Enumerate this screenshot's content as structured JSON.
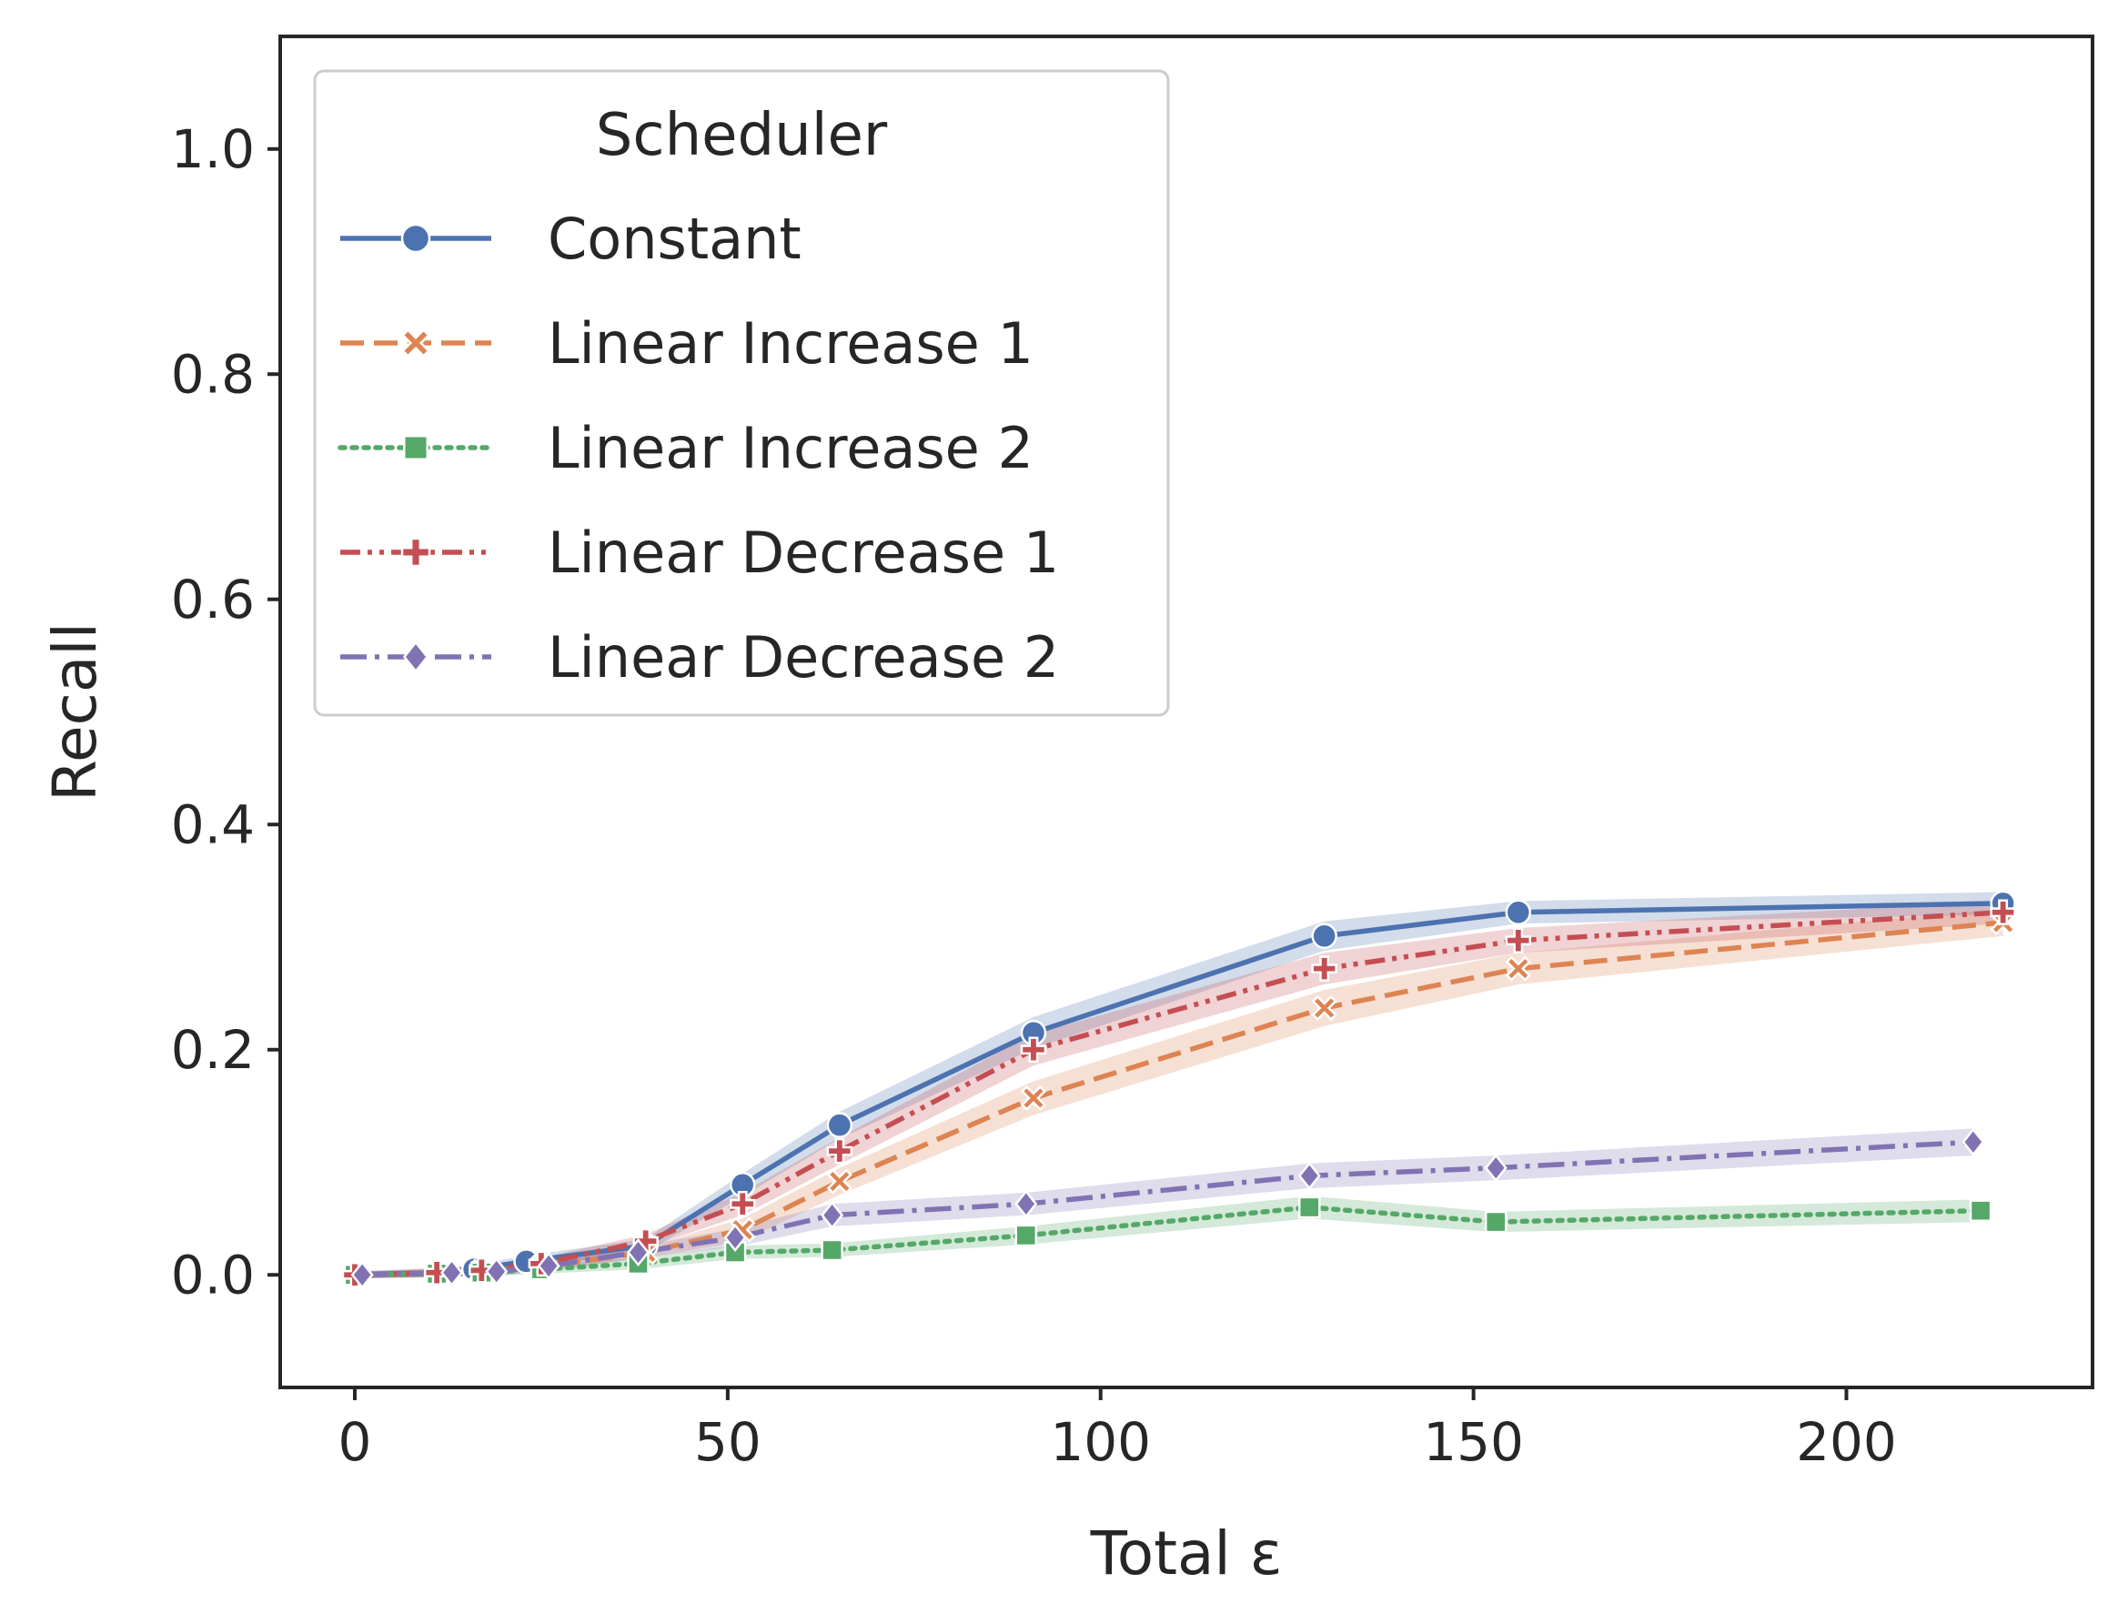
{
  "chart_data": {
    "type": "line",
    "xlabel": "Total ε",
    "ylabel": "Recall",
    "xlim": [
      -10,
      233
    ],
    "ylim": [
      -0.1,
      1.1
    ],
    "xticks": [
      0,
      50,
      100,
      150,
      200
    ],
    "yticks": [
      0.0,
      0.2,
      0.4,
      0.6,
      0.8,
      1.0
    ],
    "xtick_labels": [
      "0",
      "50",
      "100",
      "150",
      "200"
    ],
    "ytick_labels": [
      "0.0",
      "0.2",
      "0.4",
      "0.6",
      "0.8",
      "1.0"
    ],
    "grid": false,
    "legend": {
      "title": "Scheduler",
      "placement": "top-left"
    },
    "series": [
      {
        "name": "Constant",
        "color": "#4c72b0",
        "linestyle": "solid",
        "marker": "circle",
        "x": [
          0,
          11,
          16,
          23,
          39,
          52,
          65,
          91,
          130,
          156,
          221
        ],
        "y": [
          0.0,
          0.002,
          0.005,
          0.012,
          0.026,
          0.08,
          0.133,
          0.215,
          0.301,
          0.322,
          0.33
        ],
        "band": [
          0.003,
          0.004,
          0.004,
          0.005,
          0.006,
          0.01,
          0.012,
          0.014,
          0.013,
          0.01,
          0.01
        ]
      },
      {
        "name": "Linear Increase 1",
        "color": "#dd8452",
        "linestyle": "dashed",
        "marker": "x",
        "x": [
          0,
          11,
          17,
          25,
          39,
          52,
          65,
          91,
          130,
          156,
          221
        ],
        "y": [
          0.0,
          0.001,
          0.003,
          0.007,
          0.02,
          0.04,
          0.083,
          0.157,
          0.237,
          0.272,
          0.313
        ],
        "band": [
          0.003,
          0.003,
          0.004,
          0.004,
          0.005,
          0.01,
          0.012,
          0.015,
          0.016,
          0.014,
          0.012
        ]
      },
      {
        "name": "Linear Increase 2",
        "color": "#55a868",
        "linestyle": "dotted",
        "marker": "square",
        "x": [
          0,
          11,
          17,
          25,
          38,
          51,
          64,
          90,
          128,
          153,
          218
        ],
        "y": [
          0.0,
          0.001,
          0.002,
          0.005,
          0.01,
          0.02,
          0.022,
          0.035,
          0.06,
          0.047,
          0.057
        ],
        "band": [
          0.003,
          0.003,
          0.003,
          0.004,
          0.005,
          0.006,
          0.006,
          0.008,
          0.01,
          0.009,
          0.01
        ]
      },
      {
        "name": "Linear Decrease 1",
        "color": "#c44e52",
        "linestyle": "dashdotdot",
        "marker": "plus",
        "x": [
          0,
          11,
          17,
          25,
          39,
          52,
          65,
          91,
          130,
          156,
          221
        ],
        "y": [
          0.0,
          0.002,
          0.004,
          0.01,
          0.03,
          0.063,
          0.11,
          0.2,
          0.272,
          0.297,
          0.322
        ],
        "band": [
          0.003,
          0.004,
          0.004,
          0.005,
          0.006,
          0.01,
          0.012,
          0.014,
          0.014,
          0.011,
          0.01
        ]
      },
      {
        "name": "Linear Decrease 2",
        "color": "#8172b3",
        "linestyle": "dashdot",
        "marker": "diamond",
        "x": [
          1,
          13,
          19,
          26,
          38,
          51,
          64,
          90,
          128,
          153,
          217
        ],
        "y": [
          0.0,
          0.002,
          0.003,
          0.008,
          0.02,
          0.033,
          0.053,
          0.063,
          0.088,
          0.095,
          0.118
        ],
        "band": [
          0.003,
          0.003,
          0.004,
          0.004,
          0.005,
          0.008,
          0.01,
          0.01,
          0.011,
          0.011,
          0.012
        ]
      }
    ]
  }
}
